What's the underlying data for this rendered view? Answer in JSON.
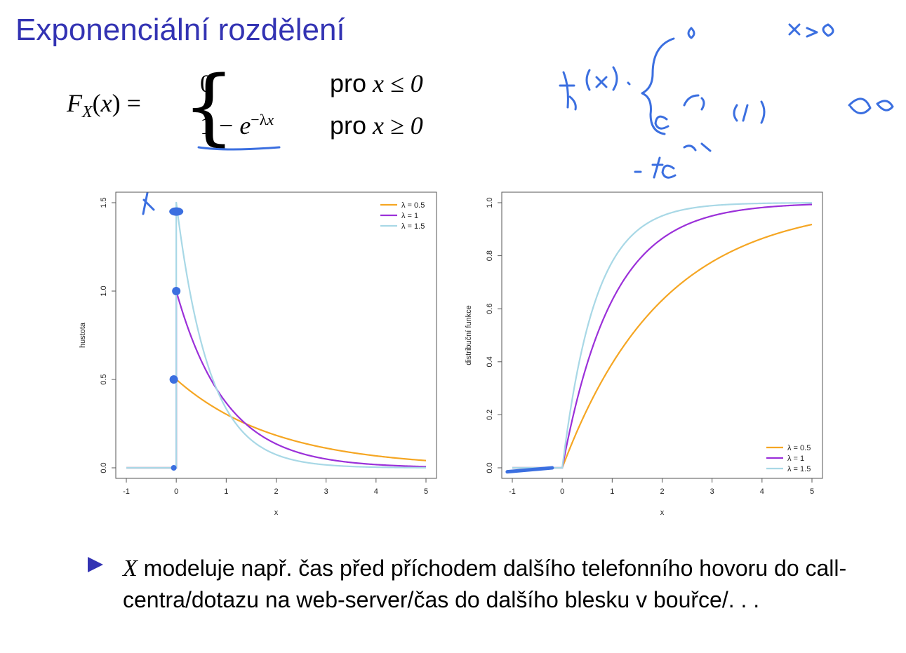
{
  "slide": {
    "title": "Exponenciální rozdělení"
  },
  "formula": {
    "lhs": "F_X(x) =",
    "case1_value": "0",
    "case1_cond": "x ≤ 0",
    "case2_value": "1 − e^(−λx)",
    "case2_cond": "x ≥ 0",
    "cond_word": "pro"
  },
  "bullet": {
    "variable": "X",
    "text": "modeluje např. čas před příchodem dalšího telefonního hovoru do call-centra/dotazu na web-server/čas do dalšího blesku v bouřce/. . ."
  },
  "colors": {
    "title": "#3333b3",
    "lambda_0_5": "#f5a623",
    "lambda_1": "#9b30d9",
    "lambda_1_5": "#a8d8e6",
    "ink": "#3b6fe0"
  },
  "chart_data": [
    {
      "type": "line",
      "xlabel": "x",
      "ylabel": "hustota",
      "xlim": [
        -1,
        5
      ],
      "ylim": [
        0,
        1.5
      ],
      "xticks": [
        "-1",
        "0",
        "1",
        "2",
        "3",
        "4",
        "5"
      ],
      "yticks": [
        "0.0",
        "0.5",
        "1.0",
        "1.5"
      ],
      "legend": "top-right",
      "function": "density",
      "series": [
        {
          "name": "λ = 0.5",
          "lambda": 0.5
        },
        {
          "name": "λ = 1",
          "lambda": 1
        },
        {
          "name": "λ = 1.5",
          "lambda": 1.5
        }
      ]
    },
    {
      "type": "line",
      "xlabel": "x",
      "ylabel": "distribuční funkce",
      "xlim": [
        -1,
        5
      ],
      "ylim": [
        0,
        1
      ],
      "xticks": [
        "-1",
        "0",
        "1",
        "2",
        "3",
        "4",
        "5"
      ],
      "yticks": [
        "0.0",
        "0.2",
        "0.4",
        "0.6",
        "0.8",
        "1.0"
      ],
      "legend": "bottom-right",
      "function": "cdf",
      "series": [
        {
          "name": "λ = 0.5",
          "lambda": 0.5
        },
        {
          "name": "λ = 1",
          "lambda": 1
        },
        {
          "name": "λ = 1.5",
          "lambda": 1.5
        }
      ]
    }
  ]
}
